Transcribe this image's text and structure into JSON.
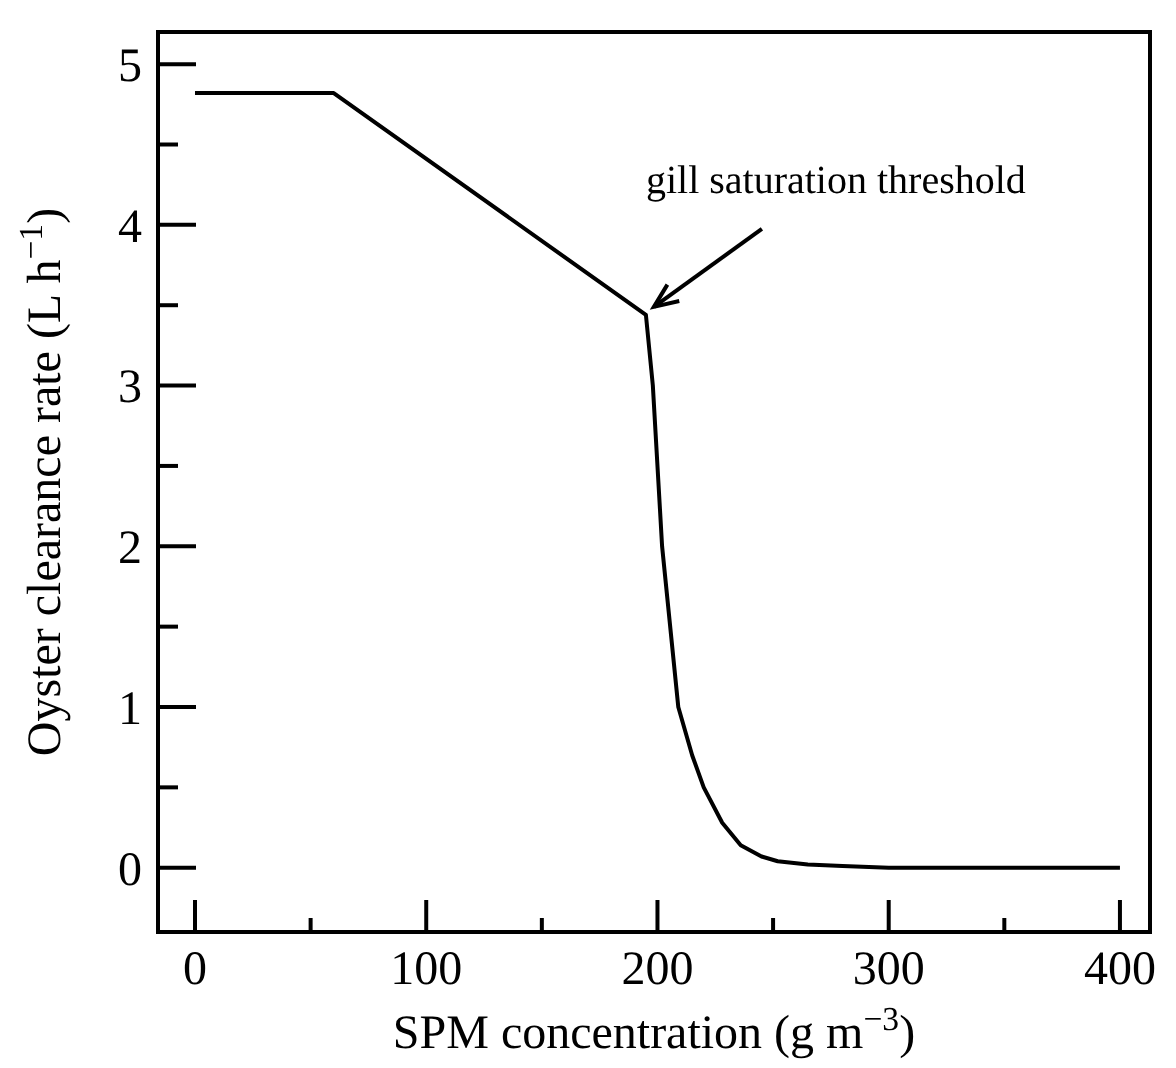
{
  "chart_data": {
    "type": "line",
    "xlabel": "SPM concentration (g m$^{−3}$)",
    "ylabel": "Oyster clearance rate (L h$^{−1}$)",
    "xlim": [
      -16,
      413
    ],
    "ylim": [
      -0.4,
      5.2
    ],
    "xticks": [
      0,
      {
        "value": 50,
        "label": null
      },
      100,
      {
        "value": 150,
        "label": null
      },
      200,
      {
        "value": 250,
        "label": null
      },
      300,
      {
        "value": 350,
        "label": null
      },
      400
    ],
    "yticks": [
      0,
      {
        "value": 0.5,
        "label": null
      },
      1,
      {
        "value": 1.5,
        "label": null
      },
      2,
      {
        "value": 2.5,
        "label": null
      },
      3,
      {
        "value": 3.5,
        "label": null
      },
      4,
      {
        "value": 4.5,
        "label": null
      },
      5
    ],
    "grid": false,
    "marker": "none",
    "line_style": "solid",
    "annotations": [
      {
        "text": "gill saturation threshold",
        "x": 195,
        "y": 3.44
      }
    ],
    "series": [
      {
        "color": "#000000",
        "x": [
          0,
          60,
          195,
          198,
          202,
          209,
          215,
          220,
          228,
          236,
          245,
          252,
          265,
          280,
          300,
          400
        ],
        "values": [
          4.82,
          4.82,
          3.44,
          3,
          2,
          1,
          0.7,
          0.5,
          0.28,
          0.14,
          0.07,
          0.04,
          0.02,
          0.01,
          0,
          0
        ]
      }
    ]
  }
}
